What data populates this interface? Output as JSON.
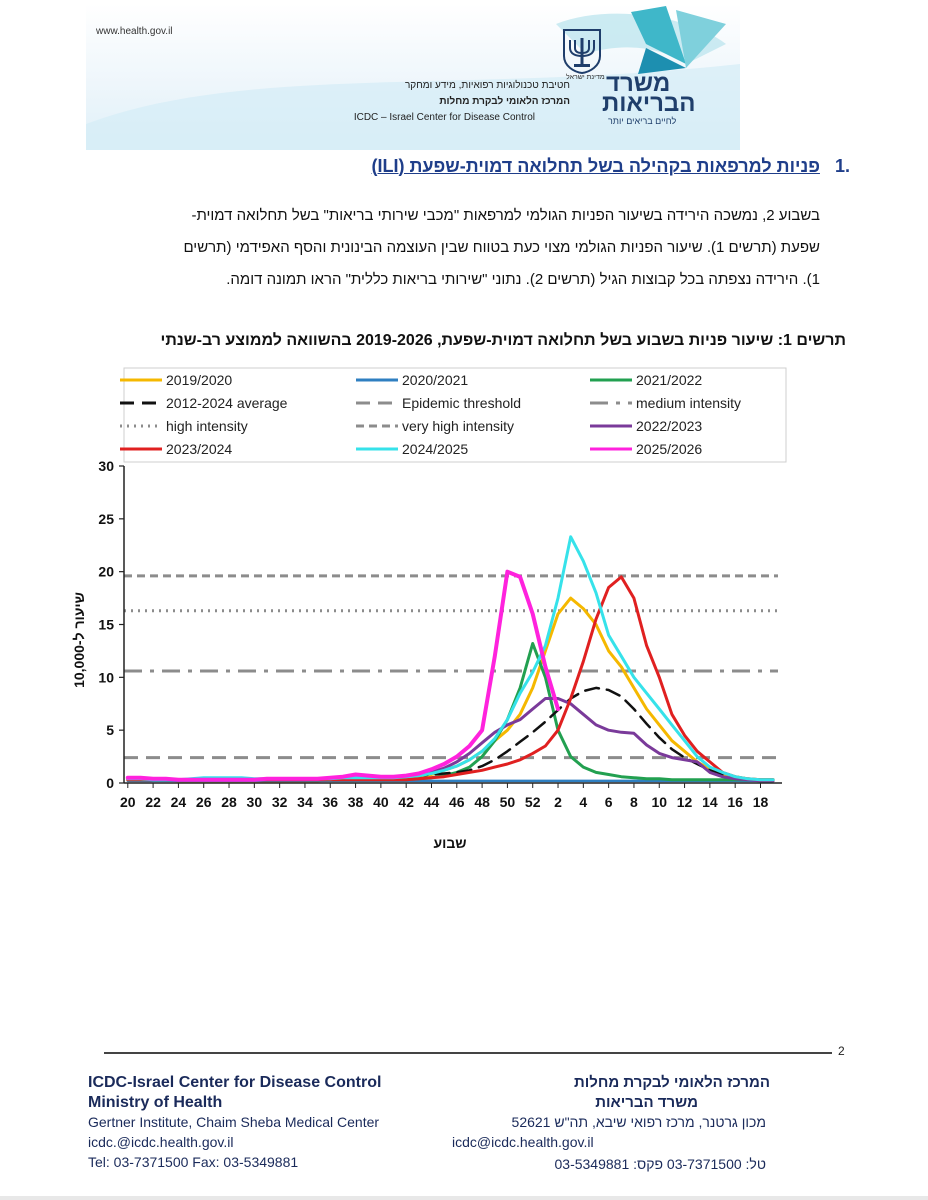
{
  "header": {
    "site_url": "www.health.gov.il",
    "line1": "חטיבת טכנולוגיות רפואיות, מידע ומחקר",
    "line2": "המרכז הלאומי לבקרת מחלות",
    "line3": "ICDC – Israel Center for Disease Control",
    "logo_line1": "משרד",
    "logo_line2": "הבריאות",
    "logo_tagline": "לחיים בריאים יותר",
    "emblem_caption": "מדינת ישראל",
    "colors": {
      "logo": "#1f3e6b",
      "accent_teal": "#3fb7c9"
    }
  },
  "section": {
    "number": ".1",
    "title": "פניות למרפאות בקהילה בשל תחלואה דמוית-שפעת (ILI)"
  },
  "paragraph": {
    "line1": "בשבוע 2, נמשכה הירידה בשיעור הפניות הגולמי למרפאות \"מכבי שירותי בריאות\" בשל תחלואה דמוית-",
    "line2": "שפעת (תרשים 1). שיעור הפניות הגולמי מצוי כעת בטווח שבין העוצמה הבינונית והסף האפידמי (תרשים",
    "line3": "1). הירידה נצפתה בכל קבוצות הגיל (תרשים 2). נתוני \"שירותי בריאות כללית\" הראו תמונה דומה."
  },
  "chart_title": "תרשים 1: שיעור פניות בשבוע בשל תחלואה דמוית-שפעת, 2019-2026 בהשוואה לממוצע רב-שנתי",
  "chart_data": {
    "type": "line",
    "title": "",
    "xlabel": "שבוע",
    "ylabel": "שיעור ל-10,000",
    "ylim": [
      0,
      30
    ],
    "yticks": [
      0,
      5,
      10,
      15,
      20,
      25,
      30
    ],
    "x_ticks": [
      "20",
      "22",
      "24",
      "26",
      "28",
      "30",
      "32",
      "34",
      "36",
      "38",
      "40",
      "42",
      "44",
      "46",
      "48",
      "50",
      "52",
      "2",
      "4",
      "6",
      "8",
      "10",
      "12",
      "14",
      "16",
      "18"
    ],
    "weeks": [
      "20",
      "21",
      "22",
      "23",
      "24",
      "25",
      "26",
      "27",
      "28",
      "29",
      "30",
      "31",
      "32",
      "33",
      "34",
      "35",
      "36",
      "37",
      "38",
      "39",
      "40",
      "41",
      "42",
      "43",
      "44",
      "45",
      "46",
      "47",
      "48",
      "49",
      "50",
      "51",
      "52",
      "1",
      "2",
      "3",
      "4",
      "5",
      "6",
      "7",
      "8",
      "9",
      "10",
      "11",
      "12",
      "13",
      "14",
      "15",
      "16",
      "17",
      "18",
      "19"
    ],
    "legend": {
      "position": "top",
      "columns": 3
    },
    "thresholds": [
      {
        "name": "Epidemic threshold",
        "value": 2.4,
        "color": "#8c8c8c",
        "dash": "dashed"
      },
      {
        "name": "medium intensity",
        "value": 10.6,
        "color": "#8c8c8c",
        "dash": "dashdot"
      },
      {
        "name": "high intensity",
        "value": 16.3,
        "color": "#8c8c8c",
        "dash": "dotted"
      },
      {
        "name": "very high intensity",
        "value": 19.6,
        "color": "#8c8c8c",
        "dash": "dashed-fine"
      }
    ],
    "series": [
      {
        "name": "2019/2020",
        "color": "#f5b800",
        "width": 3,
        "values": [
          0.3,
          0.3,
          0.3,
          0.3,
          0.2,
          0.2,
          0.2,
          0.2,
          0.2,
          0.2,
          0.2,
          0.2,
          0.2,
          0.2,
          0.2,
          0.2,
          0.3,
          0.3,
          0.3,
          0.3,
          0.3,
          0.3,
          0.3,
          0.5,
          0.8,
          1.2,
          1.6,
          2.2,
          3.0,
          4.0,
          5.0,
          6.5,
          9.0,
          12.5,
          16.0,
          17.5,
          16.5,
          15.0,
          12.5,
          11.0,
          9.0,
          7.0,
          5.5,
          4.0,
          3.0,
          2.0,
          1.3,
          0.8,
          0.6,
          0.4,
          0.3,
          0.3
        ]
      },
      {
        "name": "2020/2021",
        "color": "#2f7fc1",
        "width": 2.5,
        "values": [
          0.2,
          0.2,
          0.2,
          0.2,
          0.2,
          0.2,
          0.2,
          0.2,
          0.2,
          0.2,
          0.2,
          0.2,
          0.2,
          0.2,
          0.2,
          0.2,
          0.2,
          0.2,
          0.2,
          0.2,
          0.2,
          0.2,
          0.2,
          0.2,
          0.2,
          0.2,
          0.2,
          0.2,
          0.2,
          0.2,
          0.2,
          0.2,
          0.2,
          0.2,
          0.2,
          0.2,
          0.2,
          0.2,
          0.2,
          0.2,
          0.2,
          0.2,
          0.2,
          0.2,
          0.2,
          0.2,
          0.2,
          0.2,
          0.2,
          0.2,
          0.2,
          0.2
        ]
      },
      {
        "name": "2021/2022",
        "color": "#22a050",
        "width": 3,
        "values": [
          0.3,
          0.3,
          0.3,
          0.3,
          0.3,
          0.3,
          0.3,
          0.4,
          0.4,
          0.4,
          0.3,
          0.3,
          0.3,
          0.3,
          0.3,
          0.3,
          0.3,
          0.3,
          0.3,
          0.3,
          0.3,
          0.3,
          0.3,
          0.4,
          0.5,
          0.7,
          1.0,
          1.5,
          2.5,
          4.0,
          6.0,
          9.0,
          13.2,
          10.0,
          5.0,
          2.5,
          1.5,
          1.0,
          0.8,
          0.6,
          0.5,
          0.4,
          0.4,
          0.3,
          0.3,
          0.3,
          0.3,
          0.3,
          0.3,
          0.3,
          0.3,
          0.3
        ]
      },
      {
        "name": "2012-2024 average",
        "color": "#111111",
        "width": 2.5,
        "dash": "dashed",
        "values": [
          0.3,
          0.3,
          0.3,
          0.3,
          0.3,
          0.3,
          0.3,
          0.3,
          0.3,
          0.3,
          0.3,
          0.3,
          0.3,
          0.3,
          0.3,
          0.3,
          0.3,
          0.4,
          0.4,
          0.5,
          0.5,
          0.5,
          0.6,
          0.7,
          0.8,
          0.9,
          1.0,
          1.2,
          1.6,
          2.2,
          3.0,
          3.9,
          4.8,
          5.8,
          6.9,
          8.0,
          8.7,
          9.0,
          8.8,
          8.2,
          7.0,
          5.6,
          4.3,
          3.2,
          2.4,
          1.8,
          1.2,
          0.8,
          0.5,
          0.4,
          0.3,
          0.3
        ]
      },
      {
        "name": "2022/2023",
        "color": "#7a3a9a",
        "width": 3,
        "values": [
          0.5,
          0.4,
          0.4,
          0.3,
          0.3,
          0.3,
          0.3,
          0.3,
          0.3,
          0.3,
          0.3,
          0.3,
          0.3,
          0.3,
          0.3,
          0.4,
          0.5,
          0.6,
          0.7,
          0.7,
          0.6,
          0.6,
          0.7,
          0.8,
          1.0,
          1.4,
          2.0,
          2.8,
          3.8,
          4.8,
          5.5,
          6.0,
          7.0,
          8.0,
          8.0,
          7.5,
          6.5,
          5.5,
          5.0,
          4.8,
          4.7,
          3.6,
          2.8,
          2.4,
          2.2,
          2.0,
          1.0,
          0.6,
          0.4,
          0.3,
          0.2,
          0.2
        ]
      },
      {
        "name": "2023/2024",
        "color": "#e02020",
        "width": 3,
        "values": [
          0.3,
          0.3,
          0.3,
          0.3,
          0.3,
          0.3,
          0.3,
          0.3,
          0.3,
          0.3,
          0.3,
          0.3,
          0.3,
          0.3,
          0.3,
          0.3,
          0.3,
          0.3,
          0.3,
          0.3,
          0.3,
          0.3,
          0.3,
          0.4,
          0.5,
          0.6,
          0.8,
          1.0,
          1.2,
          1.5,
          1.8,
          2.2,
          2.8,
          3.5,
          5.0,
          8.0,
          11.5,
          15.5,
          18.5,
          19.5,
          17.5,
          13.0,
          10.0,
          6.5,
          4.5,
          3.0,
          2.0,
          1.0,
          0.6,
          0.4,
          0.3,
          0.3
        ]
      },
      {
        "name": "2024/2025",
        "color": "#36e2ea",
        "width": 3,
        "values": [
          0.4,
          0.4,
          0.3,
          0.3,
          0.3,
          0.4,
          0.5,
          0.5,
          0.5,
          0.5,
          0.4,
          0.4,
          0.4,
          0.4,
          0.4,
          0.4,
          0.4,
          0.5,
          0.5,
          0.5,
          0.5,
          0.5,
          0.6,
          0.7,
          0.9,
          1.2,
          1.6,
          2.2,
          3.0,
          4.2,
          6.0,
          8.5,
          10.5,
          13.0,
          17.5,
          23.3,
          21.0,
          18.0,
          14.0,
          12.0,
          10.0,
          8.5,
          7.0,
          5.5,
          4.0,
          2.5,
          1.5,
          1.0,
          0.6,
          0.4,
          0.3,
          0.3
        ]
      },
      {
        "name": "2025/2026",
        "color": "#ff22dd",
        "width": 4,
        "values": [
          0.5,
          0.5,
          0.4,
          0.4,
          0.3,
          0.3,
          0.3,
          0.3,
          0.3,
          0.3,
          0.3,
          0.4,
          0.4,
          0.4,
          0.4,
          0.4,
          0.5,
          0.6,
          0.8,
          0.7,
          0.6,
          0.6,
          0.7,
          0.9,
          1.3,
          1.8,
          2.5,
          3.5,
          5.0,
          12.0,
          20.0,
          19.5,
          16.0,
          11.0,
          7.0,
          null,
          null,
          null,
          null,
          null,
          null,
          null,
          null,
          null,
          null,
          null,
          null,
          null,
          null,
          null,
          null,
          null
        ]
      }
    ]
  },
  "legend_labels": {
    "s2019": "2019/2020",
    "s2020": "2020/2021",
    "s2021": "2021/2022",
    "avg": "2012-2024 average",
    "epi": "Epidemic threshold",
    "med": "medium intensity",
    "high": "high intensity",
    "vhigh": "very high intensity",
    "s2022": "2022/2023",
    "s2023": "2023/2024",
    "s2024": "2024/2025",
    "s2025": "2025/2026"
  },
  "footer": {
    "page_number": "2",
    "en_line1": "ICDC-Israel Center for Disease Control",
    "en_line2": "Ministry of Health",
    "en_line3": "Gertner Institute, Chaim Sheba Medical Center",
    "en_line4": "icdc.@icdc.health.gov.il",
    "en_line5": "Tel: 03-7371500 Fax: 03-5349881",
    "he_line1": "המרכז הלאומי לבקרת מחלות",
    "he_line2": "משרד הבריאות",
    "he_line3": "מכון גרטנר, מרכז רפואי שיבא, תה\"ש 52621",
    "he_line4": "icdc@icdc.health.gov.il",
    "he_line5": "טל: 03-7371500 פקס: 03-5349881"
  }
}
